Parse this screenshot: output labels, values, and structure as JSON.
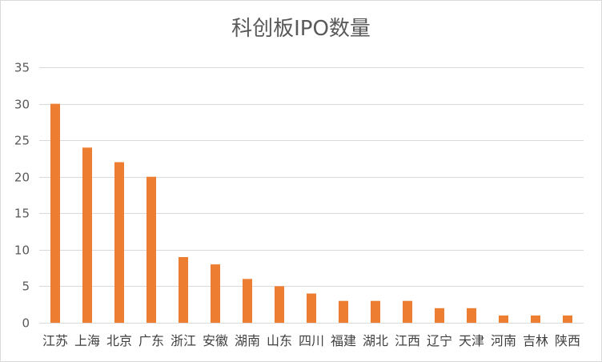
{
  "chart_data": {
    "type": "bar",
    "title": "科创板IPO数量",
    "categories": [
      "江苏",
      "上海",
      "北京",
      "广东",
      "浙江",
      "安徽",
      "湖南",
      "山东",
      "四川",
      "福建",
      "湖北",
      "江西",
      "辽宁",
      "天津",
      "河南",
      "吉林",
      "陕西"
    ],
    "series": [
      {
        "values": [
          30,
          24,
          22,
          20,
          9,
          8,
          6,
          5,
          4,
          3,
          3,
          3,
          2,
          2,
          1,
          1,
          1
        ]
      }
    ],
    "yticks": [
      0,
      5,
      10,
      15,
      20,
      25,
      30,
      35
    ],
    "ylim": [
      0,
      35
    ],
    "grid": true,
    "bar_color": "#ED7D31",
    "grid_color": "#D9D9D9"
  }
}
